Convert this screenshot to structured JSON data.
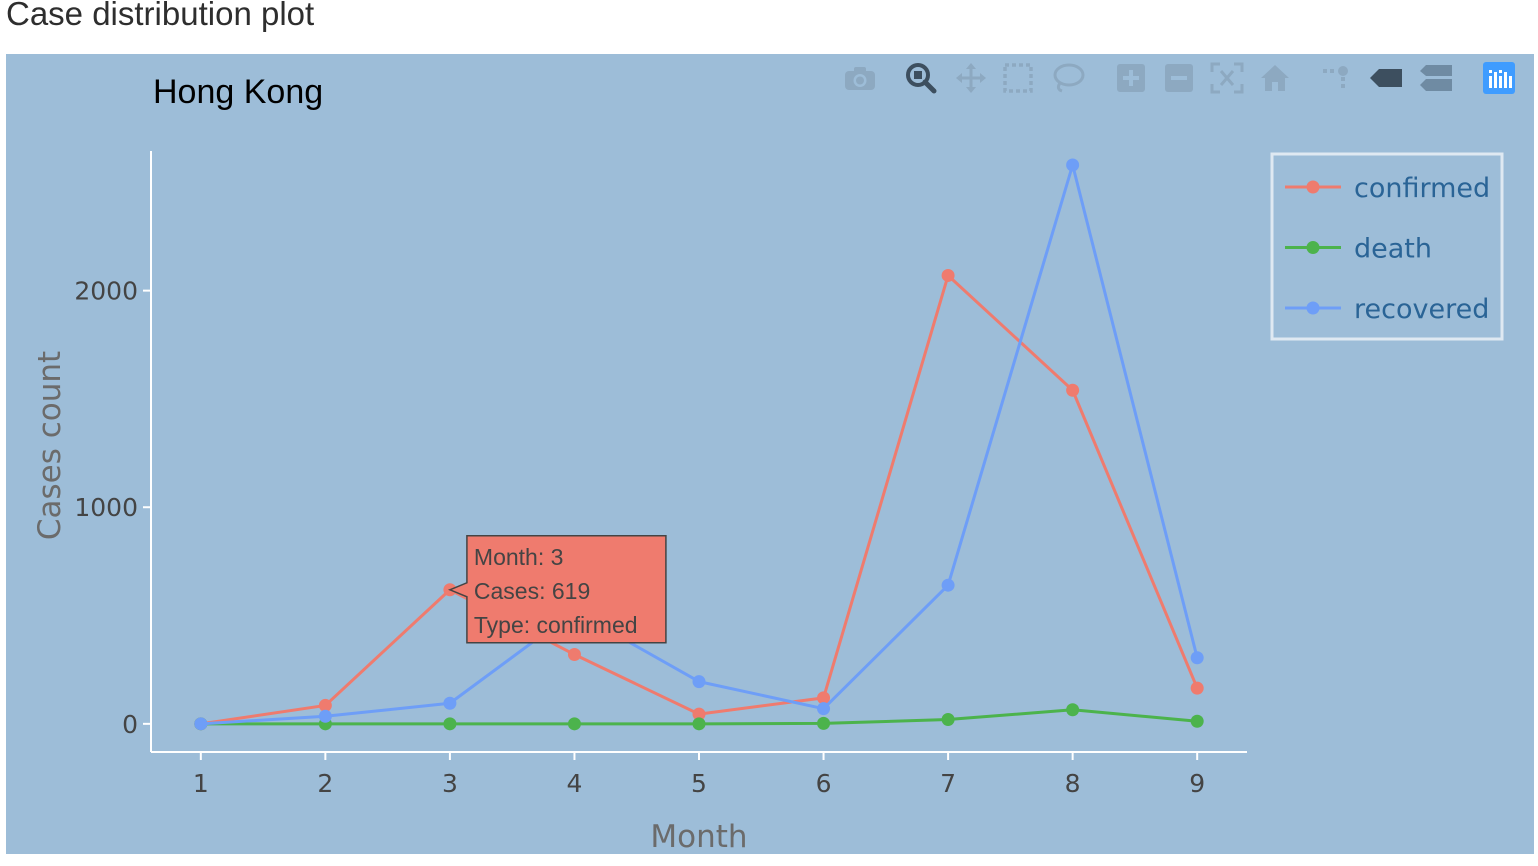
{
  "page": {
    "heading": "Case distribution plot"
  },
  "chart_data": {
    "type": "line",
    "title": "Hong Kong",
    "xlabel": "Month",
    "ylabel": "Cases count",
    "x": [
      1,
      2,
      3,
      4,
      5,
      6,
      7,
      8,
      9
    ],
    "xlim": [
      0.6,
      9.4
    ],
    "ylim": [
      -130,
      2700
    ],
    "y_ticks": [
      0,
      1000,
      2000
    ],
    "grid": false,
    "legend_position": "top-right",
    "series": [
      {
        "name": "confirmed",
        "color": "#ef7b6e",
        "values": [
          0,
          85,
          619,
          320,
          45,
          120,
          2070,
          1540,
          165
        ]
      },
      {
        "name": "death",
        "color": "#4cb34c",
        "values": [
          0,
          0,
          0,
          0,
          0,
          2,
          20,
          65,
          12
        ]
      },
      {
        "name": "recovered",
        "color": "#6e9ef7",
        "values": [
          0,
          35,
          95,
          520,
          195,
          70,
          640,
          2580,
          305
        ]
      }
    ],
    "tooltip": {
      "series": "confirmed",
      "point_index": 2,
      "lines": [
        "Month: 3",
        "Cases: 619",
        "Type: confirmed"
      ]
    }
  },
  "modebar": {
    "buttons": [
      {
        "icon": "camera-icon",
        "name": "download-plot-button"
      },
      {
        "icon": "zoom-icon",
        "name": "zoom-button",
        "active": true
      },
      {
        "icon": "pan-icon",
        "name": "pan-button"
      },
      {
        "icon": "box-select-icon",
        "name": "box-select-button"
      },
      {
        "icon": "lasso-select-icon",
        "name": "lasso-select-button"
      },
      {
        "icon": "zoom-in-icon",
        "name": "zoom-in-button"
      },
      {
        "icon": "zoom-out-icon",
        "name": "zoom-out-button"
      },
      {
        "icon": "autoscale-icon",
        "name": "autoscale-button"
      },
      {
        "icon": "home-icon",
        "name": "reset-axes-button"
      },
      {
        "icon": "spike-lines-icon",
        "name": "spike-lines-button"
      },
      {
        "icon": "hover-closest-icon",
        "name": "hover-closest-button"
      },
      {
        "icon": "hover-compare-icon",
        "name": "hover-compare-button"
      },
      {
        "icon": "plotly-logo-icon",
        "name": "plotly-logo"
      }
    ]
  }
}
